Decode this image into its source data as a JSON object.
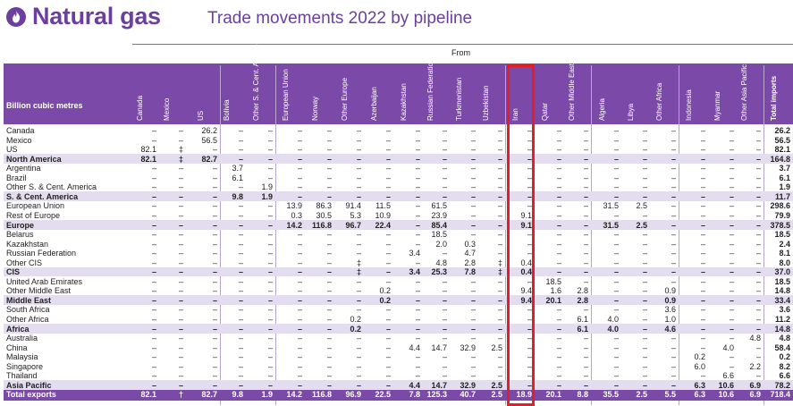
{
  "header": {
    "title": "Natural gas",
    "subtitle": "Trade movements 2022 by pipeline",
    "from_label": "From",
    "unit_label": "Billion cubic metres",
    "logo_icon": "flame-icon"
  },
  "colors": {
    "accent": "#6b3fa0",
    "band": "#7b4aa8",
    "total_row": "#e4dcef",
    "highlight": "#e01f26"
  },
  "columns": [
    "Canada",
    "Mexico",
    "US",
    "Bolivia",
    "Other S. & Cent. America",
    "European Union",
    "Norway",
    "Other Europe",
    "Azerbaijan",
    "Kazakhstan",
    "Russian Federation",
    "Turkmenistan",
    "Uzbekistan",
    "Iran",
    "Qatar",
    "Other Middle East",
    "Algeria",
    "Libya",
    "Other Africa",
    "Indonesia",
    "Myanmar",
    "Other Asia Pacific",
    "Total imports"
  ],
  "highlight_column": "Iran",
  "rows": [
    {
      "label": "Canada",
      "type": "normal",
      "values": [
        "–",
        "–",
        "26.2",
        "–",
        "–",
        "–",
        "–",
        "–",
        "–",
        "–",
        "–",
        "–",
        "–",
        "–",
        "–",
        "–",
        "–",
        "–",
        "–",
        "–",
        "–",
        "–",
        "26.2"
      ]
    },
    {
      "label": "Mexico",
      "type": "normal",
      "values": [
        "–",
        "–",
        "56.5",
        "–",
        "–",
        "–",
        "–",
        "–",
        "–",
        "–",
        "–",
        "–",
        "–",
        "–",
        "–",
        "–",
        "–",
        "–",
        "–",
        "–",
        "–",
        "–",
        "56.5"
      ]
    },
    {
      "label": "US",
      "type": "normal",
      "values": [
        "82.1",
        "‡",
        "–",
        "–",
        "–",
        "–",
        "–",
        "–",
        "–",
        "–",
        "–",
        "–",
        "–",
        "–",
        "–",
        "–",
        "–",
        "–",
        "–",
        "–",
        "–",
        "–",
        "82.1"
      ]
    },
    {
      "label": "North America",
      "type": "total",
      "values": [
        "82.1",
        "‡",
        "82.7",
        "–",
        "–",
        "–",
        "–",
        "–",
        "–",
        "–",
        "–",
        "–",
        "–",
        "–",
        "–",
        "–",
        "–",
        "–",
        "–",
        "–",
        "–",
        "–",
        "164.8"
      ]
    },
    {
      "label": "Argentina",
      "type": "normal",
      "values": [
        "–",
        "–",
        "–",
        "3.7",
        "–",
        "–",
        "–",
        "–",
        "–",
        "–",
        "–",
        "–",
        "–",
        "–",
        "–",
        "–",
        "–",
        "–",
        "–",
        "–",
        "–",
        "–",
        "3.7"
      ]
    },
    {
      "label": "Brazil",
      "type": "normal",
      "values": [
        "–",
        "–",
        "–",
        "6.1",
        "–",
        "–",
        "–",
        "–",
        "–",
        "–",
        "–",
        "–",
        "–",
        "–",
        "–",
        "–",
        "–",
        "–",
        "–",
        "–",
        "–",
        "–",
        "6.1"
      ]
    },
    {
      "label": "Other S. & Cent. America",
      "type": "normal",
      "values": [
        "–",
        "–",
        "–",
        "–",
        "1.9",
        "–",
        "–",
        "–",
        "–",
        "–",
        "–",
        "–",
        "–",
        "–",
        "–",
        "–",
        "–",
        "–",
        "–",
        "–",
        "–",
        "–",
        "1.9"
      ]
    },
    {
      "label": "S. & Cent. America",
      "type": "total",
      "values": [
        "–",
        "–",
        "–",
        "9.8",
        "1.9",
        "–",
        "–",
        "–",
        "–",
        "–",
        "–",
        "–",
        "–",
        "–",
        "–",
        "–",
        "–",
        "–",
        "–",
        "–",
        "–",
        "–",
        "11.7"
      ]
    },
    {
      "label": "European Union",
      "type": "normal",
      "values": [
        "–",
        "–",
        "–",
        "–",
        "–",
        "13.9",
        "86.3",
        "91.4",
        "11.5",
        "–",
        "61.5",
        "–",
        "–",
        "–",
        "–",
        "–",
        "31.5",
        "2.5",
        "–",
        "–",
        "–",
        "–",
        "298.6"
      ]
    },
    {
      "label": "Rest of Europe",
      "type": "normal",
      "values": [
        "–",
        "–",
        "–",
        "–",
        "–",
        "0.3",
        "30.5",
        "5.3",
        "10.9",
        "–",
        "23.9",
        "–",
        "–",
        "9.1",
        "–",
        "–",
        "–",
        "–",
        "–",
        "–",
        "–",
        "–",
        "79.9"
      ]
    },
    {
      "label": "Europe",
      "type": "total",
      "values": [
        "–",
        "–",
        "–",
        "–",
        "–",
        "14.2",
        "116.8",
        "96.7",
        "22.4",
        "–",
        "85.4",
        "–",
        "–",
        "9.1",
        "–",
        "–",
        "31.5",
        "2.5",
        "–",
        "–",
        "–",
        "–",
        "378.5"
      ]
    },
    {
      "label": "Belarus",
      "type": "normal",
      "values": [
        "–",
        "–",
        "–",
        "–",
        "–",
        "–",
        "–",
        "–",
        "–",
        "–",
        "18.5",
        "–",
        "–",
        "–",
        "–",
        "–",
        "–",
        "–",
        "–",
        "–",
        "–",
        "–",
        "18.5"
      ]
    },
    {
      "label": "Kazakhstan",
      "type": "normal",
      "values": [
        "–",
        "–",
        "–",
        "–",
        "–",
        "–",
        "–",
        "–",
        "–",
        "–",
        "2.0",
        "0.3",
        "–",
        "–",
        "–",
        "–",
        "–",
        "–",
        "–",
        "–",
        "–",
        "–",
        "2.4"
      ]
    },
    {
      "label": "Russian Federation",
      "type": "normal",
      "values": [
        "–",
        "–",
        "–",
        "–",
        "–",
        "–",
        "–",
        "–",
        "–",
        "3.4",
        "–",
        "4.7",
        "–",
        "–",
        "–",
        "–",
        "–",
        "–",
        "–",
        "–",
        "–",
        "–",
        "8.1"
      ]
    },
    {
      "label": "Other CIS",
      "type": "normal",
      "values": [
        "–",
        "–",
        "–",
        "–",
        "–",
        "–",
        "–",
        "‡",
        "–",
        "–",
        "4.8",
        "2.8",
        "‡",
        "0.4",
        "–",
        "–",
        "–",
        "–",
        "–",
        "–",
        "–",
        "–",
        "8.0"
      ]
    },
    {
      "label": "CIS",
      "type": "total",
      "values": [
        "–",
        "–",
        "–",
        "–",
        "–",
        "–",
        "–",
        "‡",
        "–",
        "3.4",
        "25.3",
        "7.8",
        "‡",
        "0.4",
        "–",
        "–",
        "–",
        "–",
        "–",
        "–",
        "–",
        "–",
        "37.0"
      ]
    },
    {
      "label": "United Arab Emirates",
      "type": "normal",
      "values": [
        "–",
        "–",
        "–",
        "–",
        "–",
        "–",
        "–",
        "–",
        "–",
        "–",
        "–",
        "–",
        "–",
        "–",
        "18.5",
        "–",
        "–",
        "–",
        "–",
        "–",
        "–",
        "–",
        "18.5"
      ]
    },
    {
      "label": "Other Middle East",
      "type": "normal",
      "values": [
        "–",
        "–",
        "–",
        "–",
        "–",
        "–",
        "–",
        "–",
        "0.2",
        "–",
        "–",
        "–",
        "–",
        "9.4",
        "1.6",
        "2.8",
        "–",
        "–",
        "0.9",
        "–",
        "–",
        "–",
        "14.8"
      ]
    },
    {
      "label": "Middle East",
      "type": "total",
      "values": [
        "–",
        "–",
        "–",
        "–",
        "–",
        "–",
        "–",
        "–",
        "0.2",
        "–",
        "–",
        "–",
        "–",
        "9.4",
        "20.1",
        "2.8",
        "–",
        "–",
        "0.9",
        "–",
        "–",
        "–",
        "33.4"
      ]
    },
    {
      "label": "South Africa",
      "type": "normal",
      "values": [
        "–",
        "–",
        "–",
        "–",
        "–",
        "–",
        "–",
        "–",
        "–",
        "–",
        "–",
        "–",
        "–",
        "–",
        "–",
        "–",
        "–",
        "–",
        "3.6",
        "–",
        "–",
        "–",
        "3.6"
      ]
    },
    {
      "label": "Other Africa",
      "type": "normal",
      "values": [
        "–",
        "–",
        "–",
        "–",
        "–",
        "–",
        "–",
        "0.2",
        "–",
        "–",
        "–",
        "–",
        "–",
        "–",
        "–",
        "6.1",
        "4.0",
        "–",
        "1.0",
        "–",
        "–",
        "–",
        "11.2"
      ]
    },
    {
      "label": "Africa",
      "type": "total",
      "values": [
        "–",
        "–",
        "–",
        "–",
        "–",
        "–",
        "–",
        "0.2",
        "–",
        "–",
        "–",
        "–",
        "–",
        "–",
        "–",
        "6.1",
        "4.0",
        "–",
        "4.6",
        "–",
        "–",
        "–",
        "14.8"
      ]
    },
    {
      "label": "Australia",
      "type": "normal",
      "values": [
        "–",
        "–",
        "–",
        "–",
        "–",
        "–",
        "–",
        "–",
        "–",
        "–",
        "–",
        "–",
        "–",
        "–",
        "–",
        "–",
        "–",
        "–",
        "–",
        "–",
        "–",
        "4.8",
        "4.8"
      ]
    },
    {
      "label": "China",
      "type": "normal",
      "values": [
        "–",
        "–",
        "–",
        "–",
        "–",
        "–",
        "–",
        "–",
        "–",
        "4.4",
        "14.7",
        "32.9",
        "2.5",
        "–",
        "–",
        "–",
        "–",
        "–",
        "–",
        "–",
        "4.0",
        "–",
        "58.4"
      ]
    },
    {
      "label": "Malaysia",
      "type": "normal",
      "values": [
        "–",
        "–",
        "–",
        "–",
        "–",
        "–",
        "–",
        "–",
        "–",
        "–",
        "–",
        "–",
        "–",
        "–",
        "–",
        "–",
        "–",
        "–",
        "–",
        "0.2",
        "–",
        "–",
        "0.2"
      ]
    },
    {
      "label": "Singapore",
      "type": "normal",
      "values": [
        "–",
        "–",
        "–",
        "–",
        "–",
        "–",
        "–",
        "–",
        "–",
        "–",
        "–",
        "–",
        "–",
        "–",
        "–",
        "–",
        "–",
        "–",
        "–",
        "6.0",
        "–",
        "2.2",
        "8.2"
      ]
    },
    {
      "label": "Thailand",
      "type": "normal",
      "values": [
        "–",
        "–",
        "–",
        "–",
        "–",
        "–",
        "–",
        "–",
        "–",
        "–",
        "–",
        "–",
        "–",
        "–",
        "–",
        "–",
        "–",
        "–",
        "–",
        "–",
        "6.6",
        "–",
        "6.6"
      ]
    },
    {
      "label": "Asia Pacific",
      "type": "total",
      "values": [
        "–",
        "–",
        "–",
        "–",
        "–",
        "–",
        "–",
        "–",
        "–",
        "4.4",
        "14.7",
        "32.9",
        "2.5",
        "–",
        "–",
        "–",
        "–",
        "–",
        "–",
        "6.3",
        "10.6",
        "6.9",
        "78.2"
      ]
    },
    {
      "label": "Total exports",
      "type": "grand",
      "values": [
        "82.1",
        "†",
        "82.7",
        "9.8",
        "1.9",
        "14.2",
        "116.8",
        "96.9",
        "22.5",
        "7.8",
        "125.3",
        "40.7",
        "2.5",
        "18.9",
        "20.1",
        "8.8",
        "35.5",
        "2.5",
        "5.5",
        "6.3",
        "10.6",
        "6.9",
        "718.4"
      ]
    }
  ]
}
